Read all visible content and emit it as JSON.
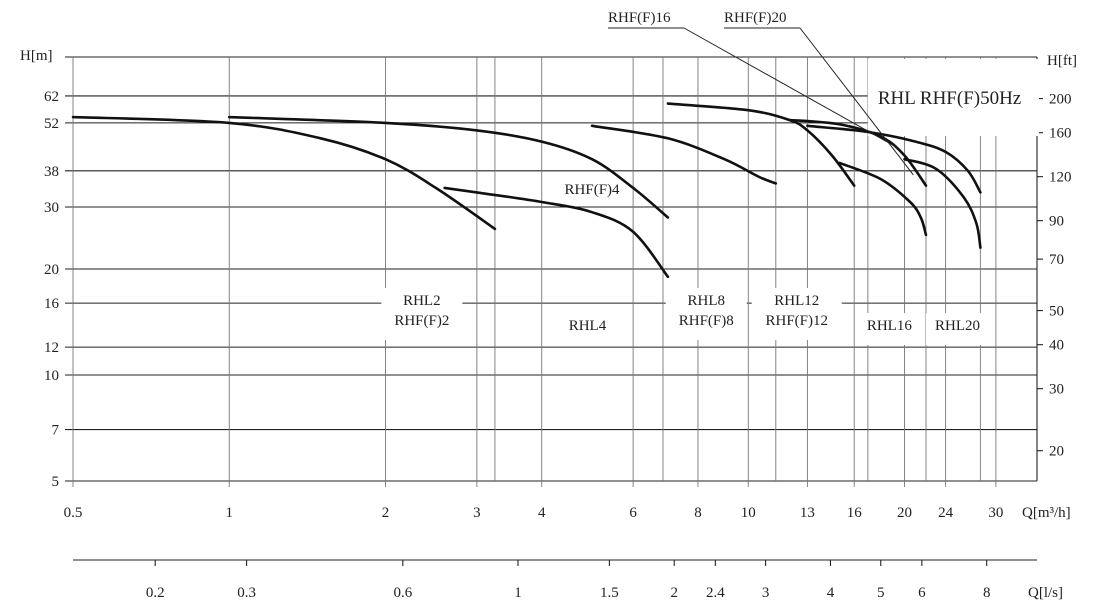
{
  "chart_data": {
    "type": "line",
    "title": "RHL RHF(F)50Hz",
    "xlabel": "Q[m³/h]",
    "x_unit": "m³/h",
    "x2label": "Q[l/s]",
    "ylabel": "H[m]",
    "y2label": "H[ft]",
    "x_scale": "log",
    "y_scale": "log",
    "xlim": [
      0.5,
      36
    ],
    "ylim": [
      5,
      80
    ],
    "grid": true,
    "x_ticks": [
      "0.5",
      "1",
      "2",
      "3",
      "4",
      "6",
      "8",
      "10",
      "13",
      "16",
      "20",
      "24",
      "30"
    ],
    "x2_ticks": [
      "0.2",
      "0.3",
      "0.6",
      "1",
      "1.5",
      "2",
      "2.4",
      "3",
      "4",
      "5",
      "6",
      "8"
    ],
    "y_ticks": [
      "5",
      "7",
      "10",
      "12",
      "16",
      "20",
      "30",
      "38",
      "52",
      "62"
    ],
    "y2_ticks": [
      "20",
      "30",
      "40",
      "50",
      "70",
      "90",
      "120",
      "160",
      "200"
    ],
    "region_labels": [
      {
        "lines": [
          "RHL2",
          "RHF(F)2"
        ],
        "q": 2.35
      },
      {
        "lines": [
          "RHL4"
        ],
        "q": 4.9
      },
      {
        "lines": [
          "RHL8",
          "RHF(F)8"
        ],
        "q": 8.3
      },
      {
        "lines": [
          "RHL12",
          "RHF(F)12"
        ],
        "q": 12.4
      },
      {
        "lines": [
          "RHL16"
        ],
        "q": 18.7
      },
      {
        "lines": [
          "RHL20"
        ],
        "q": 25.3
      }
    ],
    "curve_labels": [
      {
        "text": "RHF(F)4",
        "target": "RHF(F)4"
      },
      {
        "text": "RHF(F)16",
        "target": "RHF(F)16"
      },
      {
        "text": "RHF(F)20",
        "target": "RHF(F)20"
      }
    ],
    "series": [
      {
        "name": "RHL2",
        "points": [
          [
            0.5,
            54
          ],
          [
            1.0,
            52
          ],
          [
            1.5,
            47
          ],
          [
            2.0,
            41
          ],
          [
            2.5,
            34
          ],
          [
            3.25,
            26
          ]
        ]
      },
      {
        "name": "RHF(F)2",
        "points": [
          [
            2.6,
            34
          ],
          [
            3.0,
            33
          ],
          [
            4.0,
            31
          ],
          [
            5.0,
            29
          ],
          [
            6.0,
            25.5
          ],
          [
            7.0,
            19
          ]
        ]
      },
      {
        "name": "RHL4",
        "points": [
          [
            1.0,
            54
          ],
          [
            2.0,
            52
          ],
          [
            3.0,
            49.5
          ],
          [
            4.0,
            46
          ],
          [
            5.0,
            41
          ],
          [
            6.0,
            34
          ],
          [
            7.0,
            28
          ]
        ]
      },
      {
        "name": "RHL8",
        "points": [
          [
            5.0,
            51
          ],
          [
            7.0,
            47
          ],
          [
            9.0,
            41
          ],
          [
            10.5,
            36.5
          ],
          [
            11.3,
            35
          ]
        ]
      },
      {
        "name": "RHL12",
        "points": [
          [
            7.0,
            59
          ],
          [
            10.0,
            56.5
          ],
          [
            12.0,
            53
          ],
          [
            13.0,
            49.5
          ],
          [
            14.5,
            42
          ],
          [
            16.0,
            34.5
          ]
        ]
      },
      {
        "name": "RHL16",
        "points": [
          [
            15.0,
            40
          ],
          [
            18.0,
            36
          ],
          [
            20.5,
            31
          ],
          [
            21.5,
            28
          ],
          [
            22.0,
            25
          ]
        ]
      },
      {
        "name": "RHF(F)16",
        "points": [
          [
            12.0,
            53
          ],
          [
            15.0,
            51.5
          ],
          [
            18.0,
            47.5
          ],
          [
            20.0,
            42
          ],
          [
            22.0,
            34.5
          ]
        ]
      },
      {
        "name": "RHF(F)20",
        "points": [
          [
            13.0,
            51
          ],
          [
            17.0,
            49
          ],
          [
            21.0,
            46
          ],
          [
            24.0,
            43
          ],
          [
            26.5,
            38
          ],
          [
            28.0,
            33
          ]
        ]
      },
      {
        "name": "RHL20",
        "points": [
          [
            20.0,
            41
          ],
          [
            23.0,
            38.5
          ],
          [
            26.0,
            32
          ],
          [
            27.5,
            27
          ],
          [
            28.0,
            23
          ]
        ]
      }
    ]
  }
}
